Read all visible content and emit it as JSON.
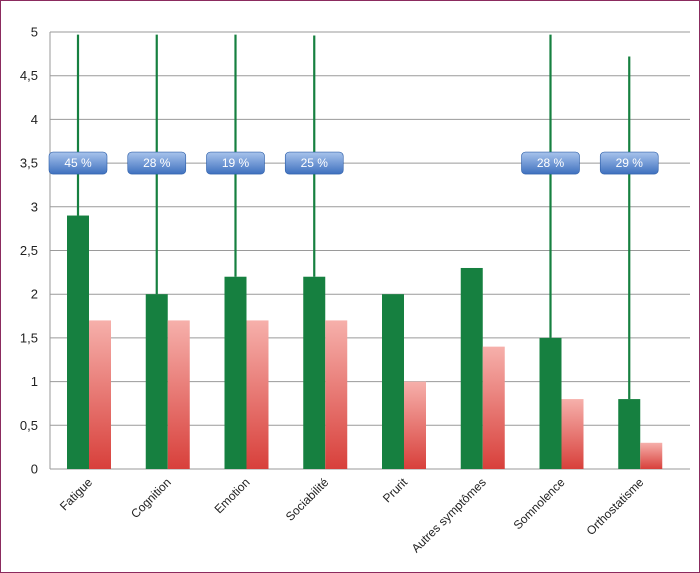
{
  "chart_data": {
    "type": "bar",
    "title": "",
    "xlabel": "",
    "ylabel": "",
    "ylim": [
      0,
      5
    ],
    "yticks": [
      "0",
      "0,5",
      "1",
      "1,5",
      "2",
      "2,5",
      "3",
      "3,5",
      "4",
      "4,5",
      "5"
    ],
    "ytick_values": [
      0,
      0.5,
      1,
      1.5,
      2,
      2.5,
      3,
      3.5,
      4,
      4.5,
      5
    ],
    "grid": true,
    "categories": [
      "Fatigue",
      "Cognition",
      "Emotion",
      "Sociabilité",
      "Prurit",
      "Autres symptômes",
      "Somnolence",
      "Orthostatisme"
    ],
    "series": [
      {
        "values": [
          2.9,
          2.0,
          2.2,
          2.2,
          2.0,
          2.3,
          1.5,
          0.8
        ],
        "color": "#168040"
      },
      {
        "values": [
          1.7,
          1.7,
          1.7,
          1.7,
          1.0,
          1.4,
          0.8,
          0.3
        ],
        "color": "#ef7b76"
      }
    ],
    "error_bar_tops": [
      4.97,
      4.97,
      4.97,
      4.96,
      null,
      null,
      4.97,
      4.72
    ],
    "annotations": [
      "45 %",
      "28 %",
      "19 %",
      "25 %",
      "",
      "",
      "28 %",
      "29 %"
    ],
    "annotation_level": 3.5,
    "colors": {
      "series1": "#168040",
      "series2_light": "#f6b0ab",
      "series2_dark": "#d8403b",
      "badge_light": "#a9c4ec",
      "badge_dark": "#3e70bf",
      "grid": "#9a9a9a",
      "frame": "#8b2b5e"
    }
  }
}
